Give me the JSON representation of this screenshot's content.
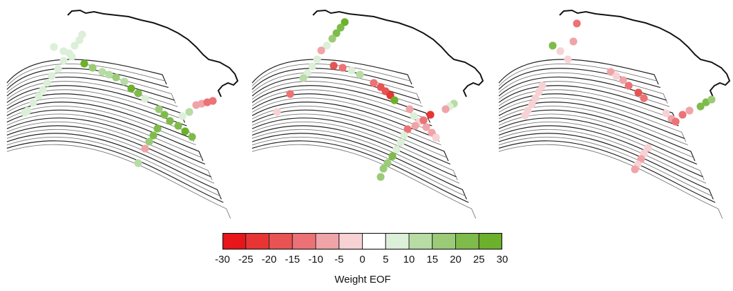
{
  "colorbar": {
    "label": "Weight EOF",
    "ticks": [
      -30,
      -25,
      -20,
      -15,
      -10,
      -5,
      0,
      5,
      10,
      15,
      20,
      25,
      30
    ],
    "colors": [
      "#e8151b",
      "#e83433",
      "#e85353",
      "#ec7276",
      "#f0a4a8",
      "#f7d2d4",
      "#ffffff",
      "#dcefd8",
      "#b7dca4",
      "#9ccb78",
      "#7fbb4a",
      "#6cb02c"
    ]
  },
  "panels": [
    {
      "name": "eof-mode-1",
      "markers": [
        [
          119,
          50,
          7
        ],
        [
          115,
          58,
          7
        ],
        [
          108,
          66,
          7
        ],
        [
          100,
          77,
          7
        ],
        [
          92,
          88,
          7
        ],
        [
          84,
          100,
          7
        ],
        [
          75,
          110,
          7
        ],
        [
          68,
          120,
          7
        ],
        [
          62,
          130,
          7
        ],
        [
          56,
          139,
          7
        ],
        [
          48,
          149,
          7
        ],
        [
          40,
          160,
          7
        ],
        [
          36,
          163,
          7
        ],
        [
          78,
          68,
          7
        ],
        [
          92,
          74,
          7
        ],
        [
          104,
          82,
          7
        ],
        [
          122,
          92,
          25
        ],
        [
          134,
          98,
          17
        ],
        [
          148,
          104,
          14
        ],
        [
          158,
          108,
          14
        ],
        [
          168,
          112,
          17
        ],
        [
          180,
          118,
          12
        ],
        [
          190,
          128,
          27
        ],
        [
          200,
          135,
          20
        ],
        [
          210,
          143,
          7
        ],
        [
          230,
          158,
          15
        ],
        [
          238,
          166,
          20
        ],
        [
          246,
          175,
          22
        ],
        [
          258,
          182,
          20
        ],
        [
          268,
          190,
          25
        ],
        [
          278,
          198,
          20
        ],
        [
          228,
          186,
          23
        ],
        [
          222,
          196,
          20
        ],
        [
          216,
          205,
          17
        ],
        [
          210,
          215,
          -7
        ],
        [
          200,
          236,
          10
        ],
        [
          274,
          162,
          12
        ],
        [
          264,
          168,
          7
        ],
        [
          284,
          152,
          -7
        ],
        [
          292,
          150,
          -10
        ],
        [
          300,
          148,
          -12
        ],
        [
          308,
          146,
          -15
        ]
      ]
    },
    {
      "name": "eof-mode-2",
      "markers": [
        [
          144,
          32,
          25
        ],
        [
          138,
          40,
          22
        ],
        [
          132,
          48,
          20
        ],
        [
          126,
          56,
          15
        ],
        [
          118,
          66,
          7
        ],
        [
          110,
          73,
          -7
        ],
        [
          104,
          86,
          5
        ],
        [
          97,
          96,
          5
        ],
        [
          90,
          106,
          7
        ],
        [
          84,
          113,
          10
        ],
        [
          65,
          136,
          -15
        ],
        [
          46,
          162,
          -5
        ],
        [
          128,
          95,
          -20
        ],
        [
          141,
          98,
          -15
        ],
        [
          154,
          102,
          7
        ],
        [
          166,
          108,
          12
        ],
        [
          186,
          120,
          -12
        ],
        [
          196,
          126,
          -17
        ],
        [
          203,
          132,
          -20
        ],
        [
          210,
          138,
          -22
        ],
        [
          216,
          145,
          25
        ],
        [
          238,
          158,
          -10
        ],
        [
          244,
          168,
          5
        ],
        [
          252,
          176,
          -5
        ],
        [
          262,
          184,
          -8
        ],
        [
          270,
          192,
          -10
        ],
        [
          276,
          199,
          -5
        ],
        [
          268,
          166,
          -22
        ],
        [
          258,
          174,
          -12
        ],
        [
          246,
          182,
          -10
        ],
        [
          235,
          187,
          -15
        ],
        [
          230,
          196,
          7
        ],
        [
          225,
          206,
          5
        ],
        [
          219,
          216,
          7
        ],
        [
          213,
          226,
          22
        ],
        [
          206,
          236,
          18
        ],
        [
          200,
          244,
          15
        ],
        [
          196,
          256,
          15
        ],
        [
          302,
          150,
          10
        ],
        [
          296,
          154,
          5
        ],
        [
          290,
          158,
          -7
        ]
      ]
    },
    {
      "name": "eof-mode-3",
      "markers": [
        [
          88,
          66,
          20
        ],
        [
          99,
          74,
          -5
        ],
        [
          110,
          86,
          -5
        ],
        [
          118,
          60,
          -7
        ],
        [
          123,
          34,
          -12
        ],
        [
          172,
          104,
          -7
        ],
        [
          180,
          110,
          -5
        ],
        [
          190,
          116,
          -10
        ],
        [
          198,
          124,
          -15
        ],
        [
          212,
          134,
          -17
        ],
        [
          220,
          142,
          -15
        ],
        [
          252,
          164,
          -5
        ],
        [
          260,
          172,
          -8
        ],
        [
          266,
          176,
          -12
        ],
        [
          276,
          166,
          -15
        ],
        [
          286,
          160,
          -7
        ],
        [
          302,
          154,
          22
        ],
        [
          310,
          148,
          20
        ],
        [
          318,
          144,
          15
        ],
        [
          226,
          214,
          -5
        ],
        [
          220,
          222,
          -5
        ],
        [
          216,
          230,
          -7
        ],
        [
          211,
          238,
          -5
        ],
        [
          207,
          245,
          -10
        ],
        [
          73,
          124,
          -5
        ],
        [
          68,
          133,
          -5
        ],
        [
          63,
          142,
          -5
        ],
        [
          58,
          151,
          -5
        ],
        [
          52,
          160,
          -5
        ],
        [
          48,
          167,
          -5
        ]
      ]
    }
  ]
}
